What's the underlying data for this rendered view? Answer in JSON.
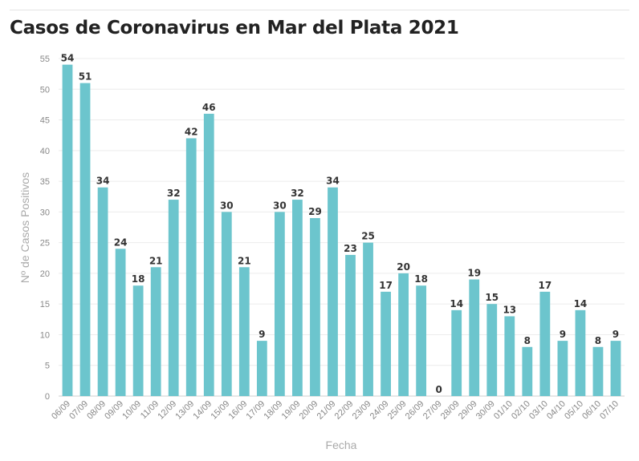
{
  "chart_data": {
    "type": "bar",
    "title": "Casos de Coronavirus en Mar del Plata 2021",
    "xlabel": "Fecha",
    "ylabel": "Nº de Casos Positivos",
    "ylim": [
      0,
      55
    ],
    "yticks": [
      0,
      5,
      10,
      15,
      20,
      25,
      30,
      35,
      40,
      45,
      50,
      55
    ],
    "grid": true,
    "bar_color": "#6cc5cd",
    "categories": [
      "06/09",
      "07/09",
      "08/09",
      "09/09",
      "10/09",
      "11/09",
      "12/09",
      "13/09",
      "14/09",
      "15/09",
      "16/09",
      "17/09",
      "18/09",
      "19/09",
      "20/09",
      "21/09",
      "22/09",
      "23/09",
      "24/09",
      "25/09",
      "26/09",
      "27/09",
      "28/09",
      "29/09",
      "30/09",
      "01/10",
      "02/10",
      "03/10",
      "04/10",
      "05/10",
      "06/10",
      "07/10"
    ],
    "values": [
      54,
      51,
      34,
      24,
      18,
      21,
      32,
      42,
      46,
      30,
      21,
      9,
      30,
      32,
      29,
      34,
      23,
      25,
      17,
      20,
      18,
      0,
      14,
      19,
      15,
      13,
      8,
      17,
      9,
      14,
      8,
      9
    ]
  }
}
